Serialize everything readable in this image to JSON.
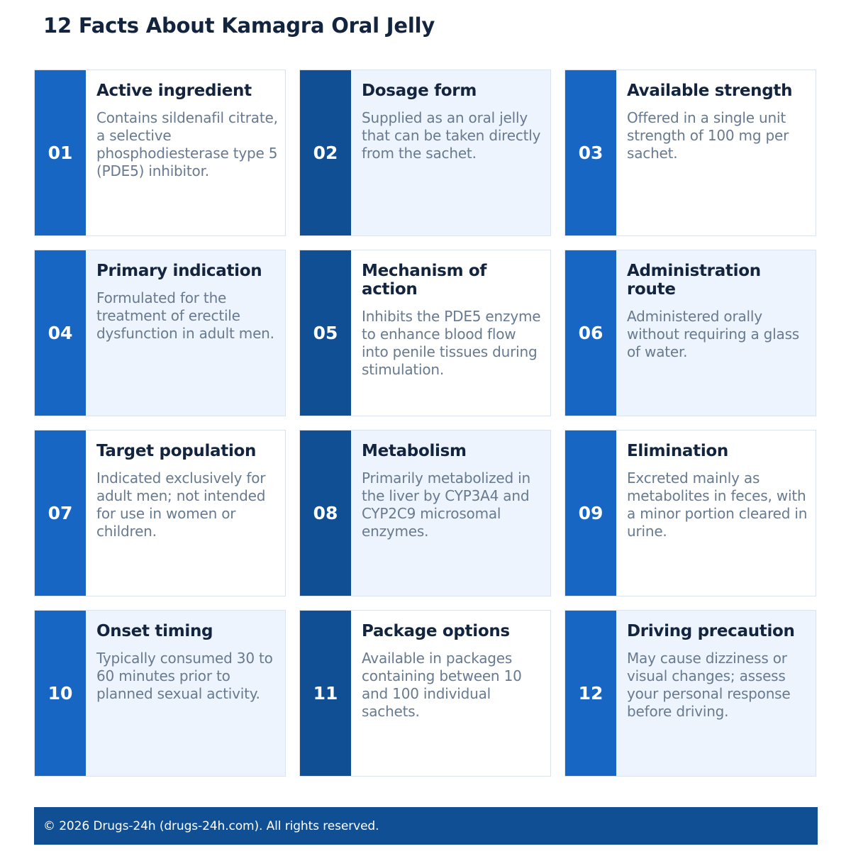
{
  "title": "12 Facts About Kamagra Oral Jelly",
  "colors": {
    "primary_blue": "#1866c4",
    "dark_blue": "#114f95",
    "card_tint": "#edf4fd",
    "heading_text": "#13243f",
    "body_text": "#677a90"
  },
  "facts": [
    {
      "number": "01",
      "title": "Active ingredient",
      "text": "Contains sildenafil citrate, a selective phosphodiesterase type 5 (PDE5) inhibitor."
    },
    {
      "number": "02",
      "title": "Dosage form",
      "text": "Supplied as an oral jelly that can be taken directly from the sachet."
    },
    {
      "number": "03",
      "title": "Available strength",
      "text": "Offered in a single unit strength of 100 mg per sachet."
    },
    {
      "number": "04",
      "title": "Primary indication",
      "text": "Formulated for the treatment of erectile dysfunction in adult men."
    },
    {
      "number": "05",
      "title": "Mechanism of action",
      "text": "Inhibits the PDE5 enzyme to enhance blood flow into penile tissues during stimulation."
    },
    {
      "number": "06",
      "title": "Administration route",
      "text": "Administered orally without requiring a glass of water."
    },
    {
      "number": "07",
      "title": "Target population",
      "text": "Indicated exclusively for adult men; not intended for use in women or children."
    },
    {
      "number": "08",
      "title": "Metabolism",
      "text": "Primarily metabolized in the liver by CYP3A4 and CYP2C9 microsomal enzymes."
    },
    {
      "number": "09",
      "title": "Elimination",
      "text": "Excreted mainly as metabolites in feces, with a minor portion cleared in urine."
    },
    {
      "number": "10",
      "title": "Onset timing",
      "text": "Typically consumed 30 to 60 minutes prior to planned sexual activity."
    },
    {
      "number": "11",
      "title": "Package options",
      "text": "Available in packages containing between 10 and 100 individual sachets."
    },
    {
      "number": "12",
      "title": "Driving precaution",
      "text": "May cause dizziness or visual changes; assess your personal response before driving."
    }
  ],
  "footer": {
    "text": "© 2026 Drugs-24h (drugs-24h.com). All rights reserved."
  }
}
